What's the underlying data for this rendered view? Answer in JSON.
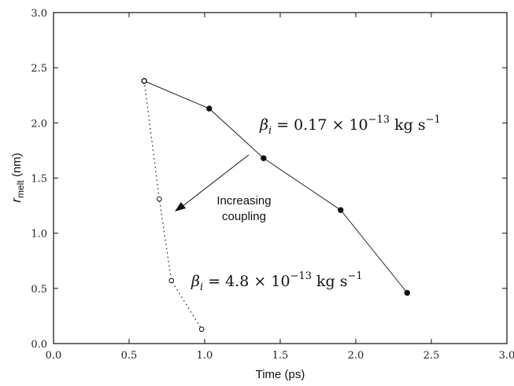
{
  "chart_data": {
    "type": "line",
    "xlabel": "Time (ps)",
    "ylabel": {
      "main": "r",
      "sub": "melt",
      "unit": " (nm)"
    },
    "xlim": [
      0.0,
      3.0
    ],
    "ylim": [
      0.0,
      3.0
    ],
    "x_ticks": [
      "0.0",
      "0.5",
      "1.0",
      "1.5",
      "2.0",
      "2.5",
      "3.0"
    ],
    "y_ticks": [
      "0.0",
      "0.5",
      "1.0",
      "1.5",
      "2.0",
      "2.5",
      "3.0"
    ],
    "grid": false,
    "series": [
      {
        "style": "solid line, filled circles",
        "x": [
          0.6,
          1.03,
          1.39,
          1.9,
          2.34
        ],
        "y": [
          2.38,
          2.13,
          1.68,
          1.21,
          0.46
        ]
      },
      {
        "style": "dotted line, open circles",
        "x": [
          0.6,
          0.7,
          0.78,
          0.98
        ],
        "y": [
          2.38,
          1.31,
          0.57,
          0.13
        ]
      }
    ],
    "annotations": {
      "beta_low": {
        "sym": "β",
        "sub": "i",
        "text": " = 0.17 × 10",
        "exp": "−13",
        "unit": " kg s",
        "unit_exp": "−1"
      },
      "beta_high": {
        "sym": "β",
        "sub": "i",
        "text": " = 4.8 × 10",
        "exp": "−13",
        "unit": " kg s",
        "unit_exp": "−1"
      },
      "arrow_label_line1": "Increasing",
      "arrow_label_line2": "coupling"
    }
  }
}
